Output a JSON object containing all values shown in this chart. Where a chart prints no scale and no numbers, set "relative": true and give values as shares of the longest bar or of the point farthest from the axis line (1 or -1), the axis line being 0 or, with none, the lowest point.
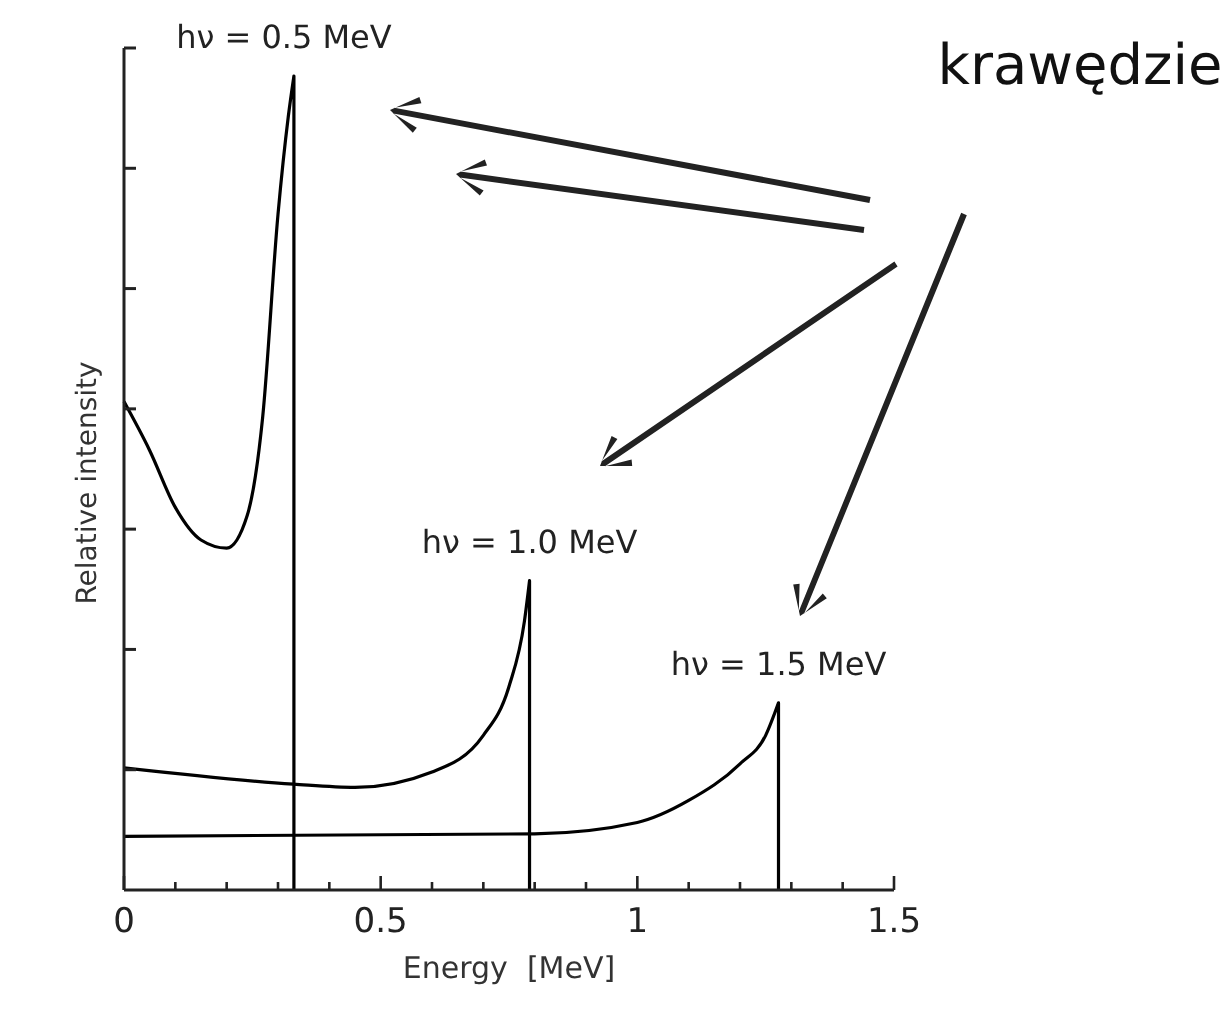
{
  "chart_data": {
    "type": "line",
    "relative": true,
    "xlabel": "Energy  [MeV]",
    "ylabel": "Relative intensity",
    "xlim": [
      0,
      1.5
    ],
    "xticks": [
      0,
      {
        "value": 0.1,
        "label": null
      },
      {
        "value": 0.2,
        "label": null
      },
      {
        "value": 0.3,
        "label": null
      },
      {
        "value": 0.4,
        "label": null
      },
      0.5,
      {
        "value": 0.6,
        "label": null
      },
      {
        "value": 0.7,
        "label": null
      },
      {
        "value": 0.8,
        "label": null
      },
      {
        "value": 0.9,
        "label": null
      },
      1,
      {
        "value": 1.1,
        "label": null
      },
      {
        "value": 1.2,
        "label": null
      },
      {
        "value": 1.3,
        "label": null
      },
      {
        "value": 1.4,
        "label": null
      },
      1.5
    ],
    "series": [
      {
        "color": "#000000",
        "x": [
          0,
          0.05,
          0.1,
          0.15,
          0.2,
          0.24,
          0.27,
          0.3,
          0.32,
          0.331,
          0.331
        ],
        "values": [
          0.6,
          0.54,
          0.47,
          0.43,
          0.42,
          0.46,
          0.58,
          0.83,
          0.95,
          1,
          0
        ]
      },
      {
        "color": "#000000",
        "x": [
          0,
          0.33,
          0.45,
          0.6,
          0.7,
          0.75,
          0.78,
          0.79,
          0.79
        ],
        "values": [
          0.15,
          0.13,
          0.126,
          0.145,
          0.19,
          0.25,
          0.33,
          0.38,
          0
        ]
      },
      {
        "color": "#000000",
        "x": [
          0,
          0.8,
          1,
          1.1,
          1.2,
          1.25,
          1.275,
          1.275
        ],
        "values": [
          0.066,
          0.069,
          0.083,
          0.11,
          0.155,
          0.19,
          0.23,
          0
        ]
      }
    ],
    "annotations": [
      {
        "text": "hν = 0.5 MeV",
        "x": 0.331,
        "y": 1
      },
      {
        "text": "hν = 1.0 MeV",
        "x": 0.79,
        "y": 0.38
      },
      {
        "text": "hν = 1.5 MeV",
        "x": 1.275,
        "y": 0.23
      },
      "krawędzie"
    ]
  }
}
